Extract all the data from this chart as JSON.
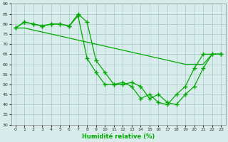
{
  "xlabel": "Humidité relative (%)",
  "x": [
    0,
    1,
    2,
    3,
    4,
    5,
    6,
    7,
    8,
    9,
    10,
    11,
    12,
    13,
    14,
    15,
    16,
    17,
    18,
    19,
    20,
    21,
    22,
    23
  ],
  "line1": [
    78,
    81,
    80,
    79,
    80,
    80,
    79,
    85,
    81,
    62,
    56,
    50,
    50,
    51,
    49,
    43,
    45,
    41,
    40,
    45,
    49,
    58,
    65,
    65
  ],
  "line2": [
    78,
    81,
    80,
    79,
    80,
    80,
    79,
    84,
    63,
    56,
    50,
    50,
    51,
    49,
    43,
    45,
    41,
    40,
    45,
    49,
    58,
    65,
    65,
    65
  ],
  "line3": [
    78,
    78,
    77,
    76,
    75,
    74,
    73,
    72,
    71,
    70,
    69,
    68,
    67,
    66,
    65,
    64,
    63,
    62,
    61,
    60,
    60,
    60,
    65,
    65
  ],
  "bg_color": "#d8ecec",
  "grid_color": "#aecece",
  "line_color": "#00aa00",
  "ylim": [
    30,
    90
  ],
  "xlim": [
    -0.5,
    23.5
  ],
  "yticks": [
    30,
    35,
    40,
    45,
    50,
    55,
    60,
    65,
    70,
    75,
    80,
    85,
    90
  ],
  "xticks": [
    0,
    1,
    2,
    3,
    4,
    5,
    6,
    7,
    8,
    9,
    10,
    11,
    12,
    13,
    14,
    15,
    16,
    17,
    18,
    19,
    20,
    21,
    22,
    23
  ]
}
